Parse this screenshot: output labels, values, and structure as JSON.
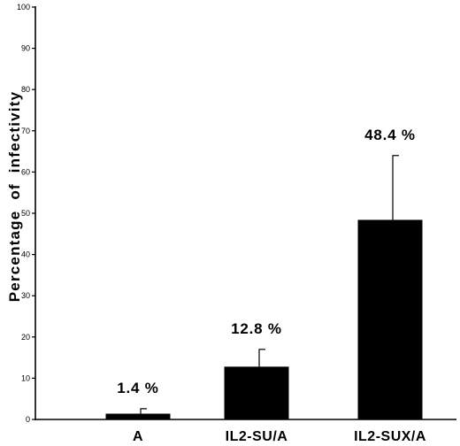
{
  "chart_data": {
    "type": "bar",
    "categories": [
      "A",
      "IL2-SU/A",
      "IL2-SUX/A"
    ],
    "values": [
      1.4,
      12.8,
      48.4
    ],
    "error_upper": [
      2.6,
      17,
      64
    ],
    "data_labels": [
      "1.4 %",
      "12.8 %",
      "48.4 %"
    ],
    "title": "",
    "xlabel": "",
    "ylabel": "Percentage of infectivity",
    "ylim": [
      0,
      100
    ],
    "y_ticks": [
      0,
      10,
      20,
      30,
      40,
      50,
      60,
      70,
      80,
      90,
      100
    ],
    "grid": false,
    "bar_color": "#000000"
  }
}
